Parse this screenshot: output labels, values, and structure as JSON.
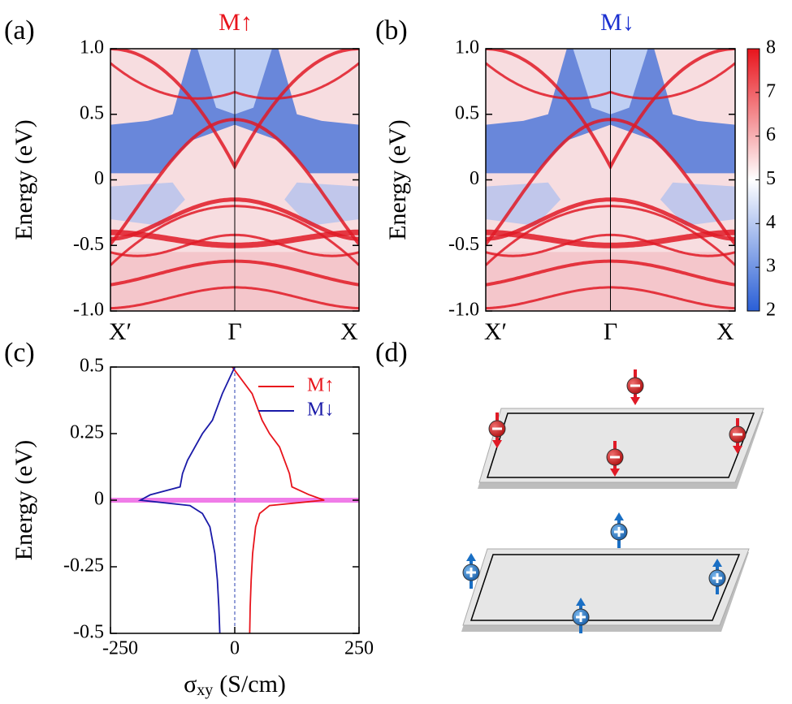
{
  "chart_data": [
    {
      "type": "heatmap",
      "panel": "(a)",
      "title": "M↑",
      "title_color": "#e8141c",
      "ylabel": "Energy (eV)",
      "categories": [
        "X′",
        "Γ",
        "X"
      ],
      "ylim": [
        -1,
        1
      ],
      "yticks": [
        {
          "value": -1,
          "label": "-1.0"
        },
        -0.5,
        0,
        0.5,
        {
          "value": 1,
          "label": "1.0"
        }
      ]
    },
    {
      "type": "heatmap",
      "panel": "(b)",
      "title": "M↓",
      "title_color": "#1a2fd0",
      "ylabel": "Energy (eV)",
      "categories": [
        "X′",
        "Γ",
        "X"
      ],
      "ylim": [
        -1,
        1
      ],
      "yticks": [
        {
          "value": -1,
          "label": "-1.0"
        },
        -0.5,
        0,
        0.5,
        {
          "value": 1,
          "label": "1.0"
        }
      ],
      "colorbar": {
        "lim": [
          2,
          8
        ],
        "ticks": [
          2,
          3,
          4,
          5,
          6,
          7,
          8
        ],
        "colors": [
          "#2a5fd6",
          "#ffffff",
          "#e8141c"
        ]
      }
    },
    {
      "type": "line",
      "panel": "(c)",
      "ylabel": "Energy (eV)",
      "xlabel": {
        "symbol": "σ",
        "subscript": "xy",
        "unit": "(S/cm)"
      },
      "xlim": [
        -250,
        250
      ],
      "xticks": [
        -250,
        0,
        250
      ],
      "ylim": [
        -0.5,
        0.5
      ],
      "yticks": [
        -0.5,
        -0.25,
        0,
        0.25,
        0.5
      ],
      "hline": 0,
      "hline_color": "#f07ce8",
      "vline": 0,
      "vline_color": "#2a3fb0",
      "y": [
        -0.5,
        -0.4,
        -0.3,
        -0.2,
        -0.1,
        -0.05,
        -0.02,
        0,
        0.02,
        0.05,
        0.1,
        0.15,
        0.2,
        0.25,
        0.3,
        0.4,
        0.5
      ],
      "series": [
        {
          "name": "M↑",
          "color": "#e8141c",
          "values": [
            30,
            31,
            33,
            36,
            42,
            50,
            70,
            180,
            150,
            115,
            110,
            100,
            90,
            70,
            55,
            35,
            -5
          ]
        },
        {
          "name": "M↓",
          "color": "#1a1aa8",
          "values": [
            -30,
            -32,
            -35,
            -40,
            -50,
            -65,
            -90,
            -190,
            -170,
            -110,
            -105,
            -95,
            -80,
            -65,
            -45,
            -25,
            0
          ]
        }
      ]
    },
    {
      "type": "diagram",
      "panel": "(d)"
    }
  ]
}
